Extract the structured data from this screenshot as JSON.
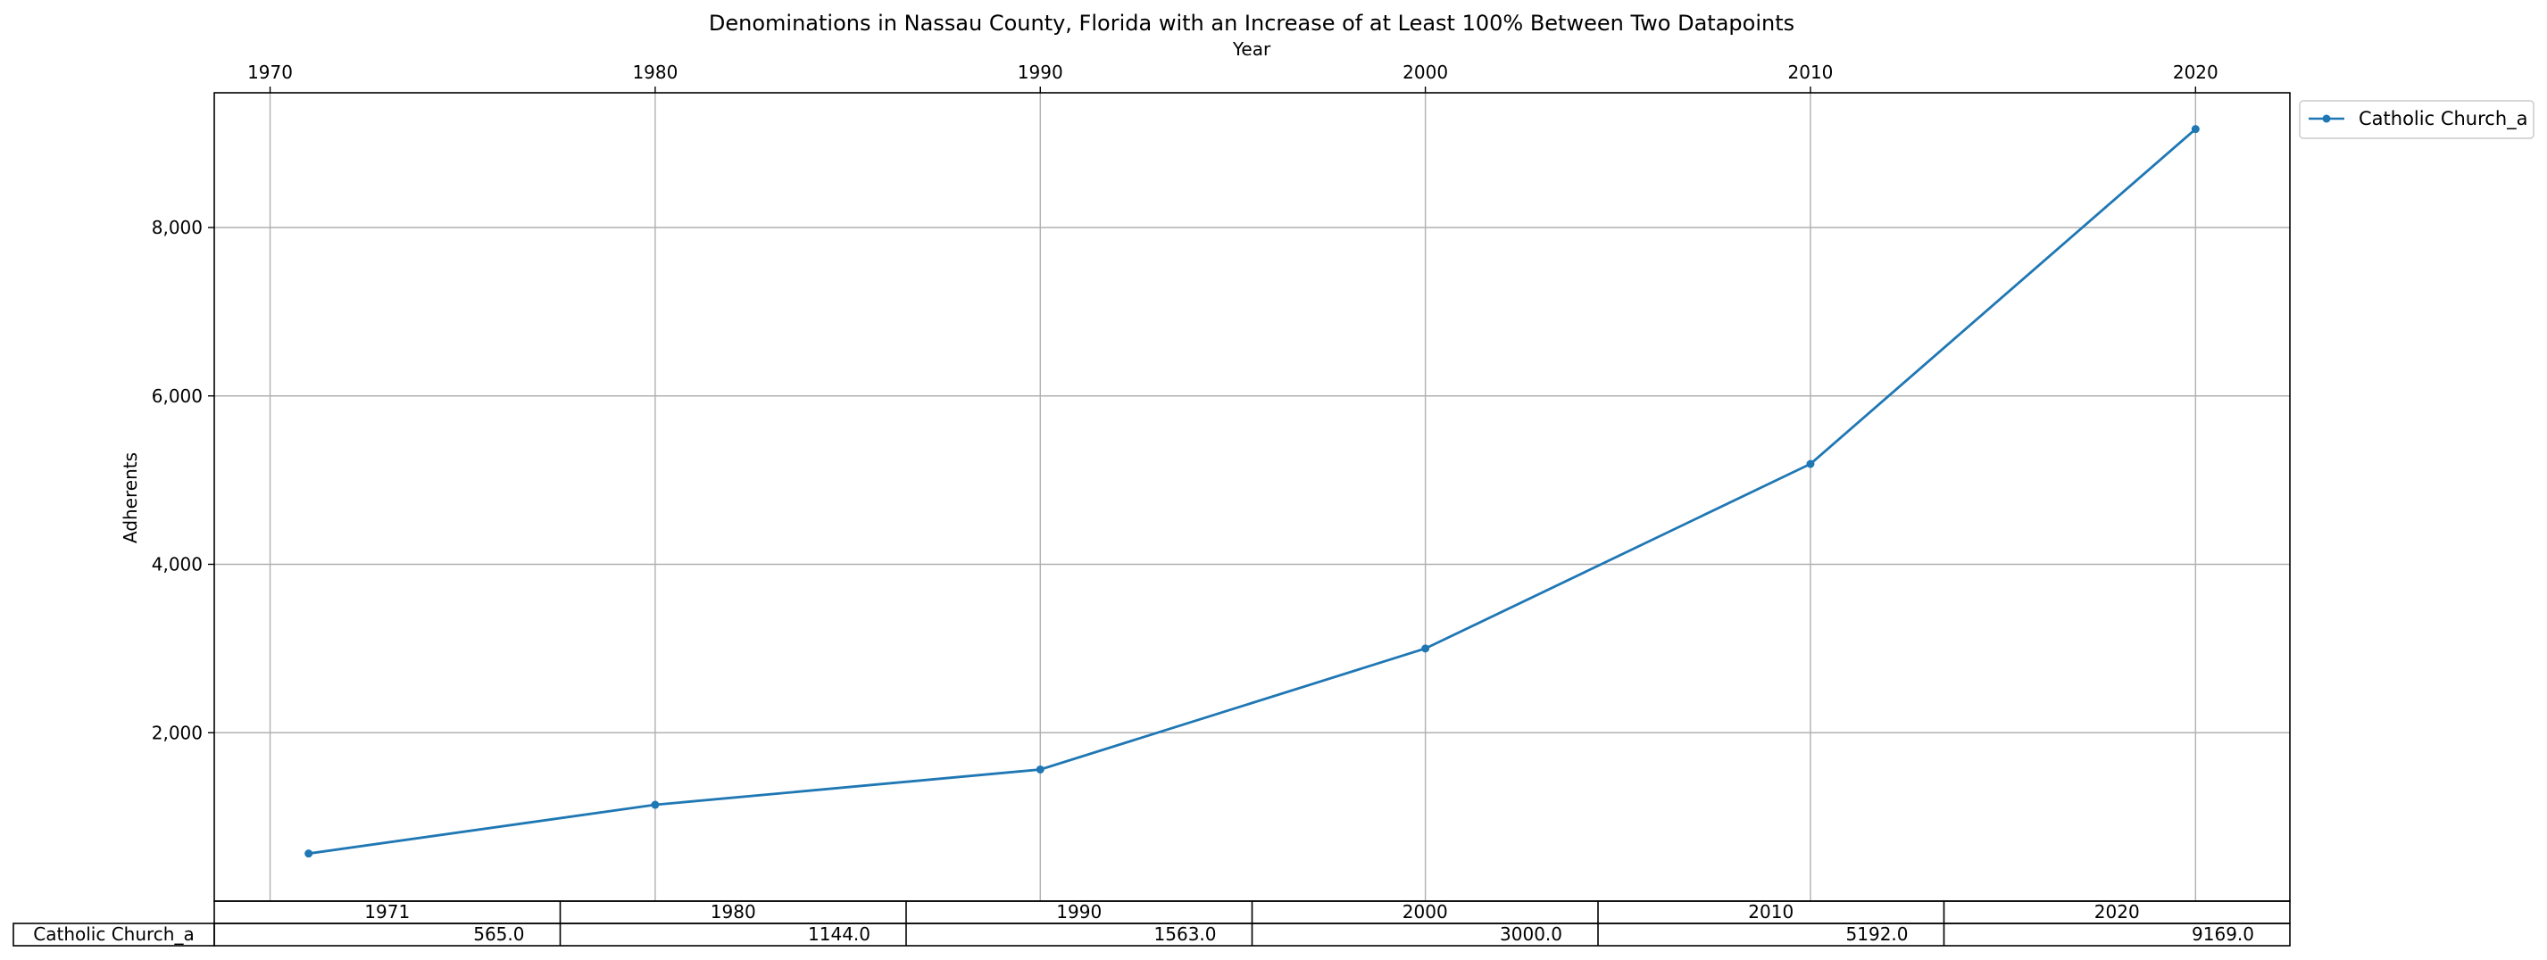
{
  "chart_data": {
    "type": "line",
    "title": "Denominations in Nassau County, Florida with an Increase of at Least 100% Between Two Datapoints",
    "xlabel": "Year",
    "ylabel": "Adherents",
    "x": [
      1971,
      1980,
      1990,
      2000,
      2010,
      2020
    ],
    "series": [
      {
        "name": "Catholic Church_a",
        "values": [
          565,
          1144,
          1563,
          3000,
          5192,
          9169
        ],
        "color": "#1f77b4"
      }
    ],
    "x_ticks": [
      "1970",
      "1980",
      "1990",
      "2000",
      "2010",
      "2020"
    ],
    "x_tick_values": [
      1970,
      1980,
      1990,
      2000,
      2010,
      2020
    ],
    "y_ticks": [
      "2,000",
      "4,000",
      "6,000",
      "8,000"
    ],
    "y_tick_values": [
      2000,
      4000,
      6000,
      8000
    ],
    "xlim": [
      1968.55,
      2022.45
    ],
    "ylim": [
      0,
      9600
    ],
    "grid": true,
    "legend_position": "outside-top-right",
    "table": {
      "header": [
        "1971",
        "1980",
        "1990",
        "2000",
        "2010",
        "2020"
      ],
      "rows": [
        {
          "label": "Catholic Church_a",
          "cells": [
            "565.0",
            "1144.0",
            "1563.0",
            "3000.0",
            "5192.0",
            "9169.0"
          ]
        }
      ]
    }
  }
}
